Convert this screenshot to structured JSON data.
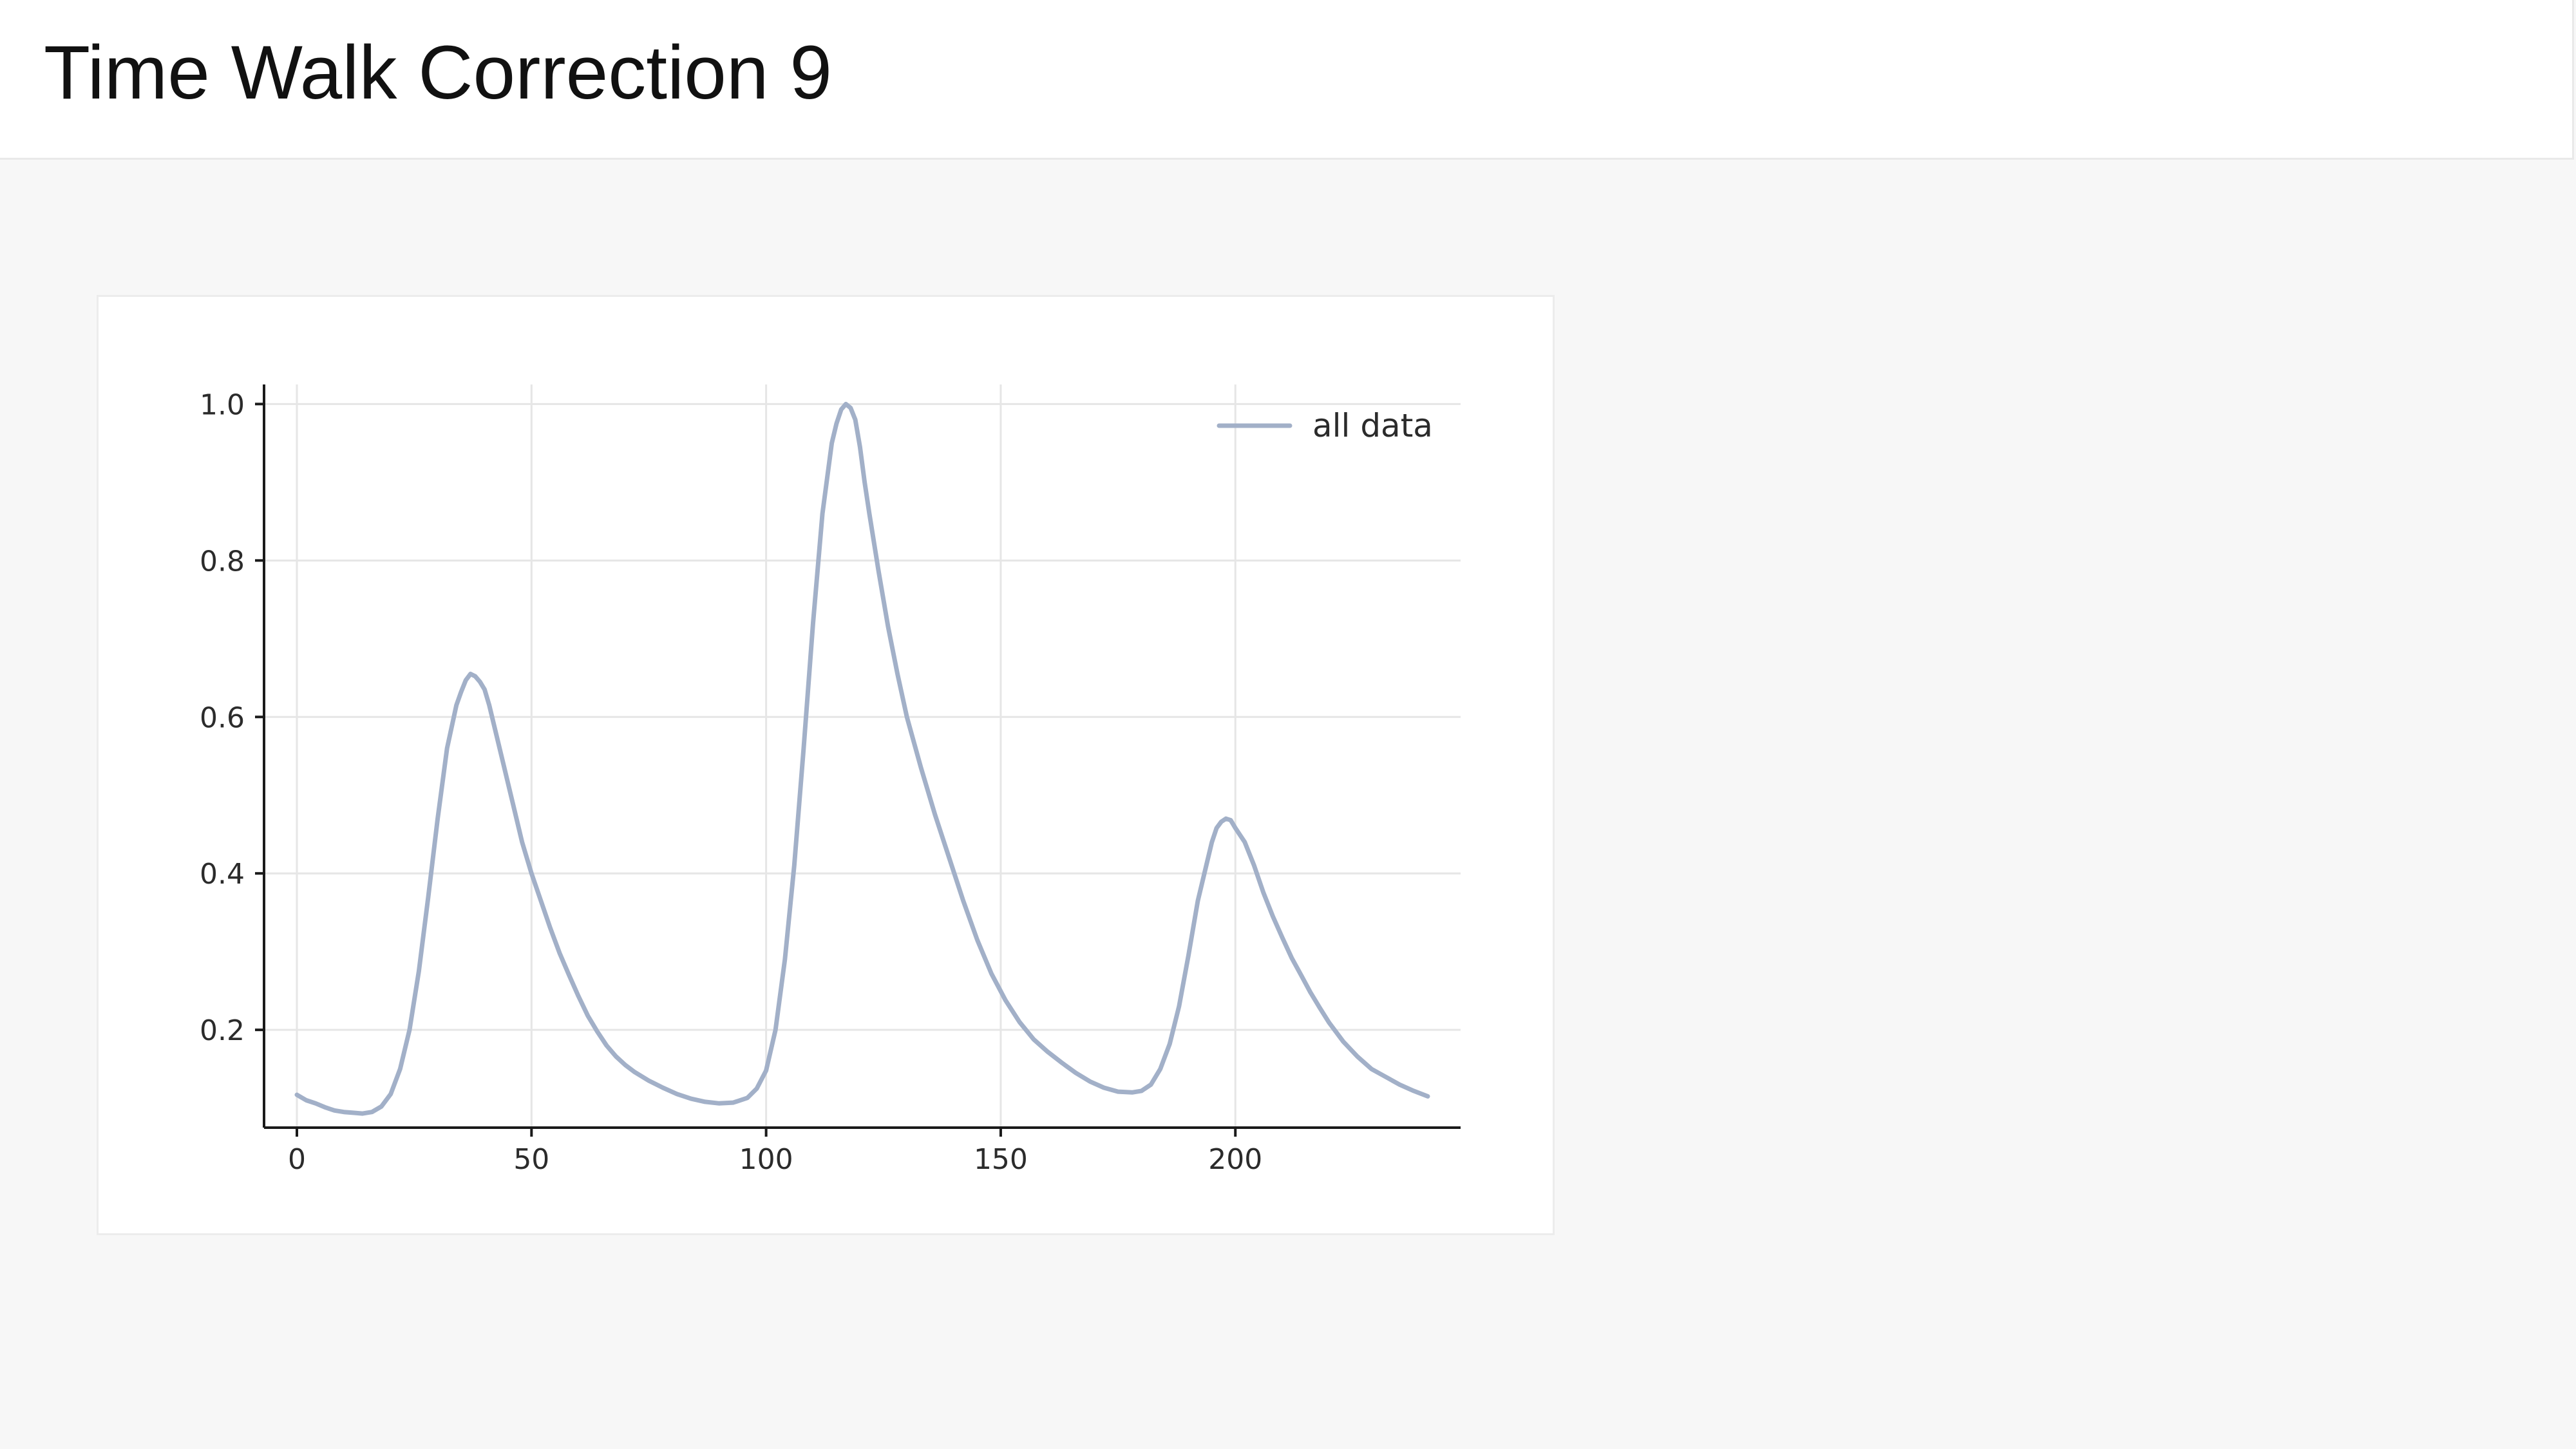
{
  "header": {
    "title": "Time Walk Correction 9"
  },
  "colors": {
    "series": "#a2b0c8",
    "grid": "#e6e6e6",
    "axis": "#1a1a1a"
  },
  "chart_data": {
    "type": "line",
    "title": "",
    "xlabel": "",
    "ylabel": "",
    "xlim": [
      -7,
      248
    ],
    "ylim": [
      0.075,
      1.025
    ],
    "xticks": [
      0,
      50,
      100,
      150,
      200
    ],
    "yticks": [
      0.2,
      0.4,
      0.6,
      0.8,
      1.0
    ],
    "ytick_labels": [
      "0.2",
      "0.4",
      "0.6",
      "0.8",
      "1.0"
    ],
    "grid": true,
    "legend_position": "top-right",
    "series": [
      {
        "name": "all data",
        "color": "#a2b0c8",
        "x": [
          0,
          2,
          4,
          6,
          8,
          10,
          12,
          14,
          16,
          18,
          20,
          22,
          24,
          26,
          28,
          30,
          32,
          34,
          35,
          36,
          37,
          38,
          39,
          40,
          41,
          42,
          44,
          46,
          48,
          50,
          52,
          54,
          56,
          58,
          60,
          62,
          64,
          66,
          68,
          70,
          72,
          75,
          78,
          81,
          84,
          87,
          90,
          93,
          96,
          98,
          100,
          102,
          104,
          106,
          108,
          110,
          112,
          114,
          115,
          116,
          117,
          118,
          119,
          120,
          121,
          122,
          124,
          126,
          128,
          130,
          133,
          136,
          139,
          142,
          145,
          148,
          151,
          154,
          157,
          160,
          163,
          166,
          169,
          172,
          175,
          178,
          180,
          182,
          184,
          186,
          188,
          190,
          192,
          194,
          195,
          196,
          197,
          198,
          199,
          200,
          202,
          204,
          206,
          208,
          210,
          212,
          214,
          216,
          218,
          220,
          223,
          226,
          229,
          232,
          235,
          238,
          241
        ],
        "y": [
          0.117,
          0.11,
          0.106,
          0.101,
          0.097,
          0.095,
          0.094,
          0.093,
          0.095,
          0.102,
          0.118,
          0.15,
          0.2,
          0.275,
          0.37,
          0.47,
          0.56,
          0.615,
          0.632,
          0.647,
          0.655,
          0.652,
          0.645,
          0.635,
          0.615,
          0.59,
          0.54,
          0.49,
          0.44,
          0.4,
          0.365,
          0.33,
          0.298,
          0.27,
          0.243,
          0.218,
          0.198,
          0.18,
          0.166,
          0.155,
          0.146,
          0.135,
          0.126,
          0.118,
          0.112,
          0.108,
          0.106,
          0.107,
          0.113,
          0.125,
          0.148,
          0.2,
          0.29,
          0.41,
          0.56,
          0.72,
          0.86,
          0.95,
          0.975,
          0.993,
          1.0,
          0.995,
          0.98,
          0.945,
          0.9,
          0.86,
          0.785,
          0.715,
          0.655,
          0.6,
          0.535,
          0.475,
          0.42,
          0.365,
          0.315,
          0.272,
          0.238,
          0.21,
          0.188,
          0.172,
          0.158,
          0.145,
          0.134,
          0.126,
          0.121,
          0.12,
          0.122,
          0.13,
          0.15,
          0.182,
          0.23,
          0.295,
          0.365,
          0.415,
          0.44,
          0.458,
          0.466,
          0.47,
          0.468,
          0.458,
          0.44,
          0.41,
          0.375,
          0.345,
          0.318,
          0.292,
          0.27,
          0.248,
          0.228,
          0.209,
          0.185,
          0.166,
          0.15,
          0.14,
          0.13,
          0.122,
          0.115
        ]
      }
    ]
  }
}
